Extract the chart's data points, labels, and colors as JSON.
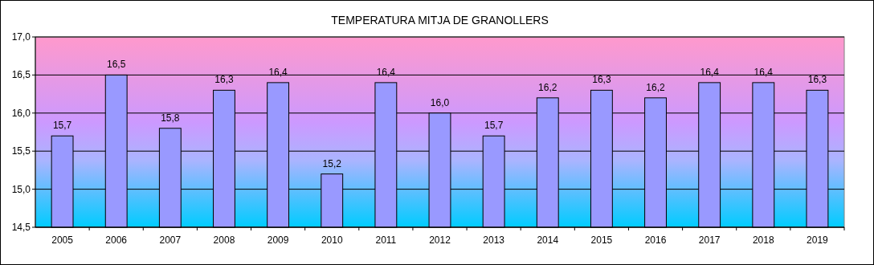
{
  "chart_data": {
    "type": "bar",
    "title": "TEMPERATURA MITJA DE GRANOLLERS",
    "categories": [
      "2005",
      "2006",
      "2007",
      "2008",
      "2009",
      "2010",
      "2011",
      "2012",
      "2013",
      "2014",
      "2015",
      "2016",
      "2017",
      "2018",
      "2019"
    ],
    "values": [
      15.7,
      16.5,
      15.8,
      16.3,
      16.4,
      15.2,
      16.4,
      16.0,
      15.7,
      16.2,
      16.3,
      16.2,
      16.4,
      16.4,
      16.3
    ],
    "value_labels": [
      "15,7",
      "16,5",
      "15,8",
      "16,3",
      "16,4",
      "15,2",
      "16,4",
      "16,0",
      "15,7",
      "16,2",
      "16,3",
      "16,2",
      "16,4",
      "16,4",
      "16,3"
    ],
    "color": "#9999ff",
    "ylim": [
      14.5,
      17.0
    ],
    "yticks": [
      {
        "value": 14.5,
        "label": "14,5"
      },
      {
        "value": 15.0,
        "label": "15,0"
      },
      {
        "value": 15.5,
        "label": "15,5"
      },
      {
        "value": 16.0,
        "label": "16,0"
      },
      {
        "value": 16.5,
        "label": "16,5"
      },
      {
        "value": 17.0,
        "label": "17,0"
      }
    ],
    "grid": "y"
  }
}
